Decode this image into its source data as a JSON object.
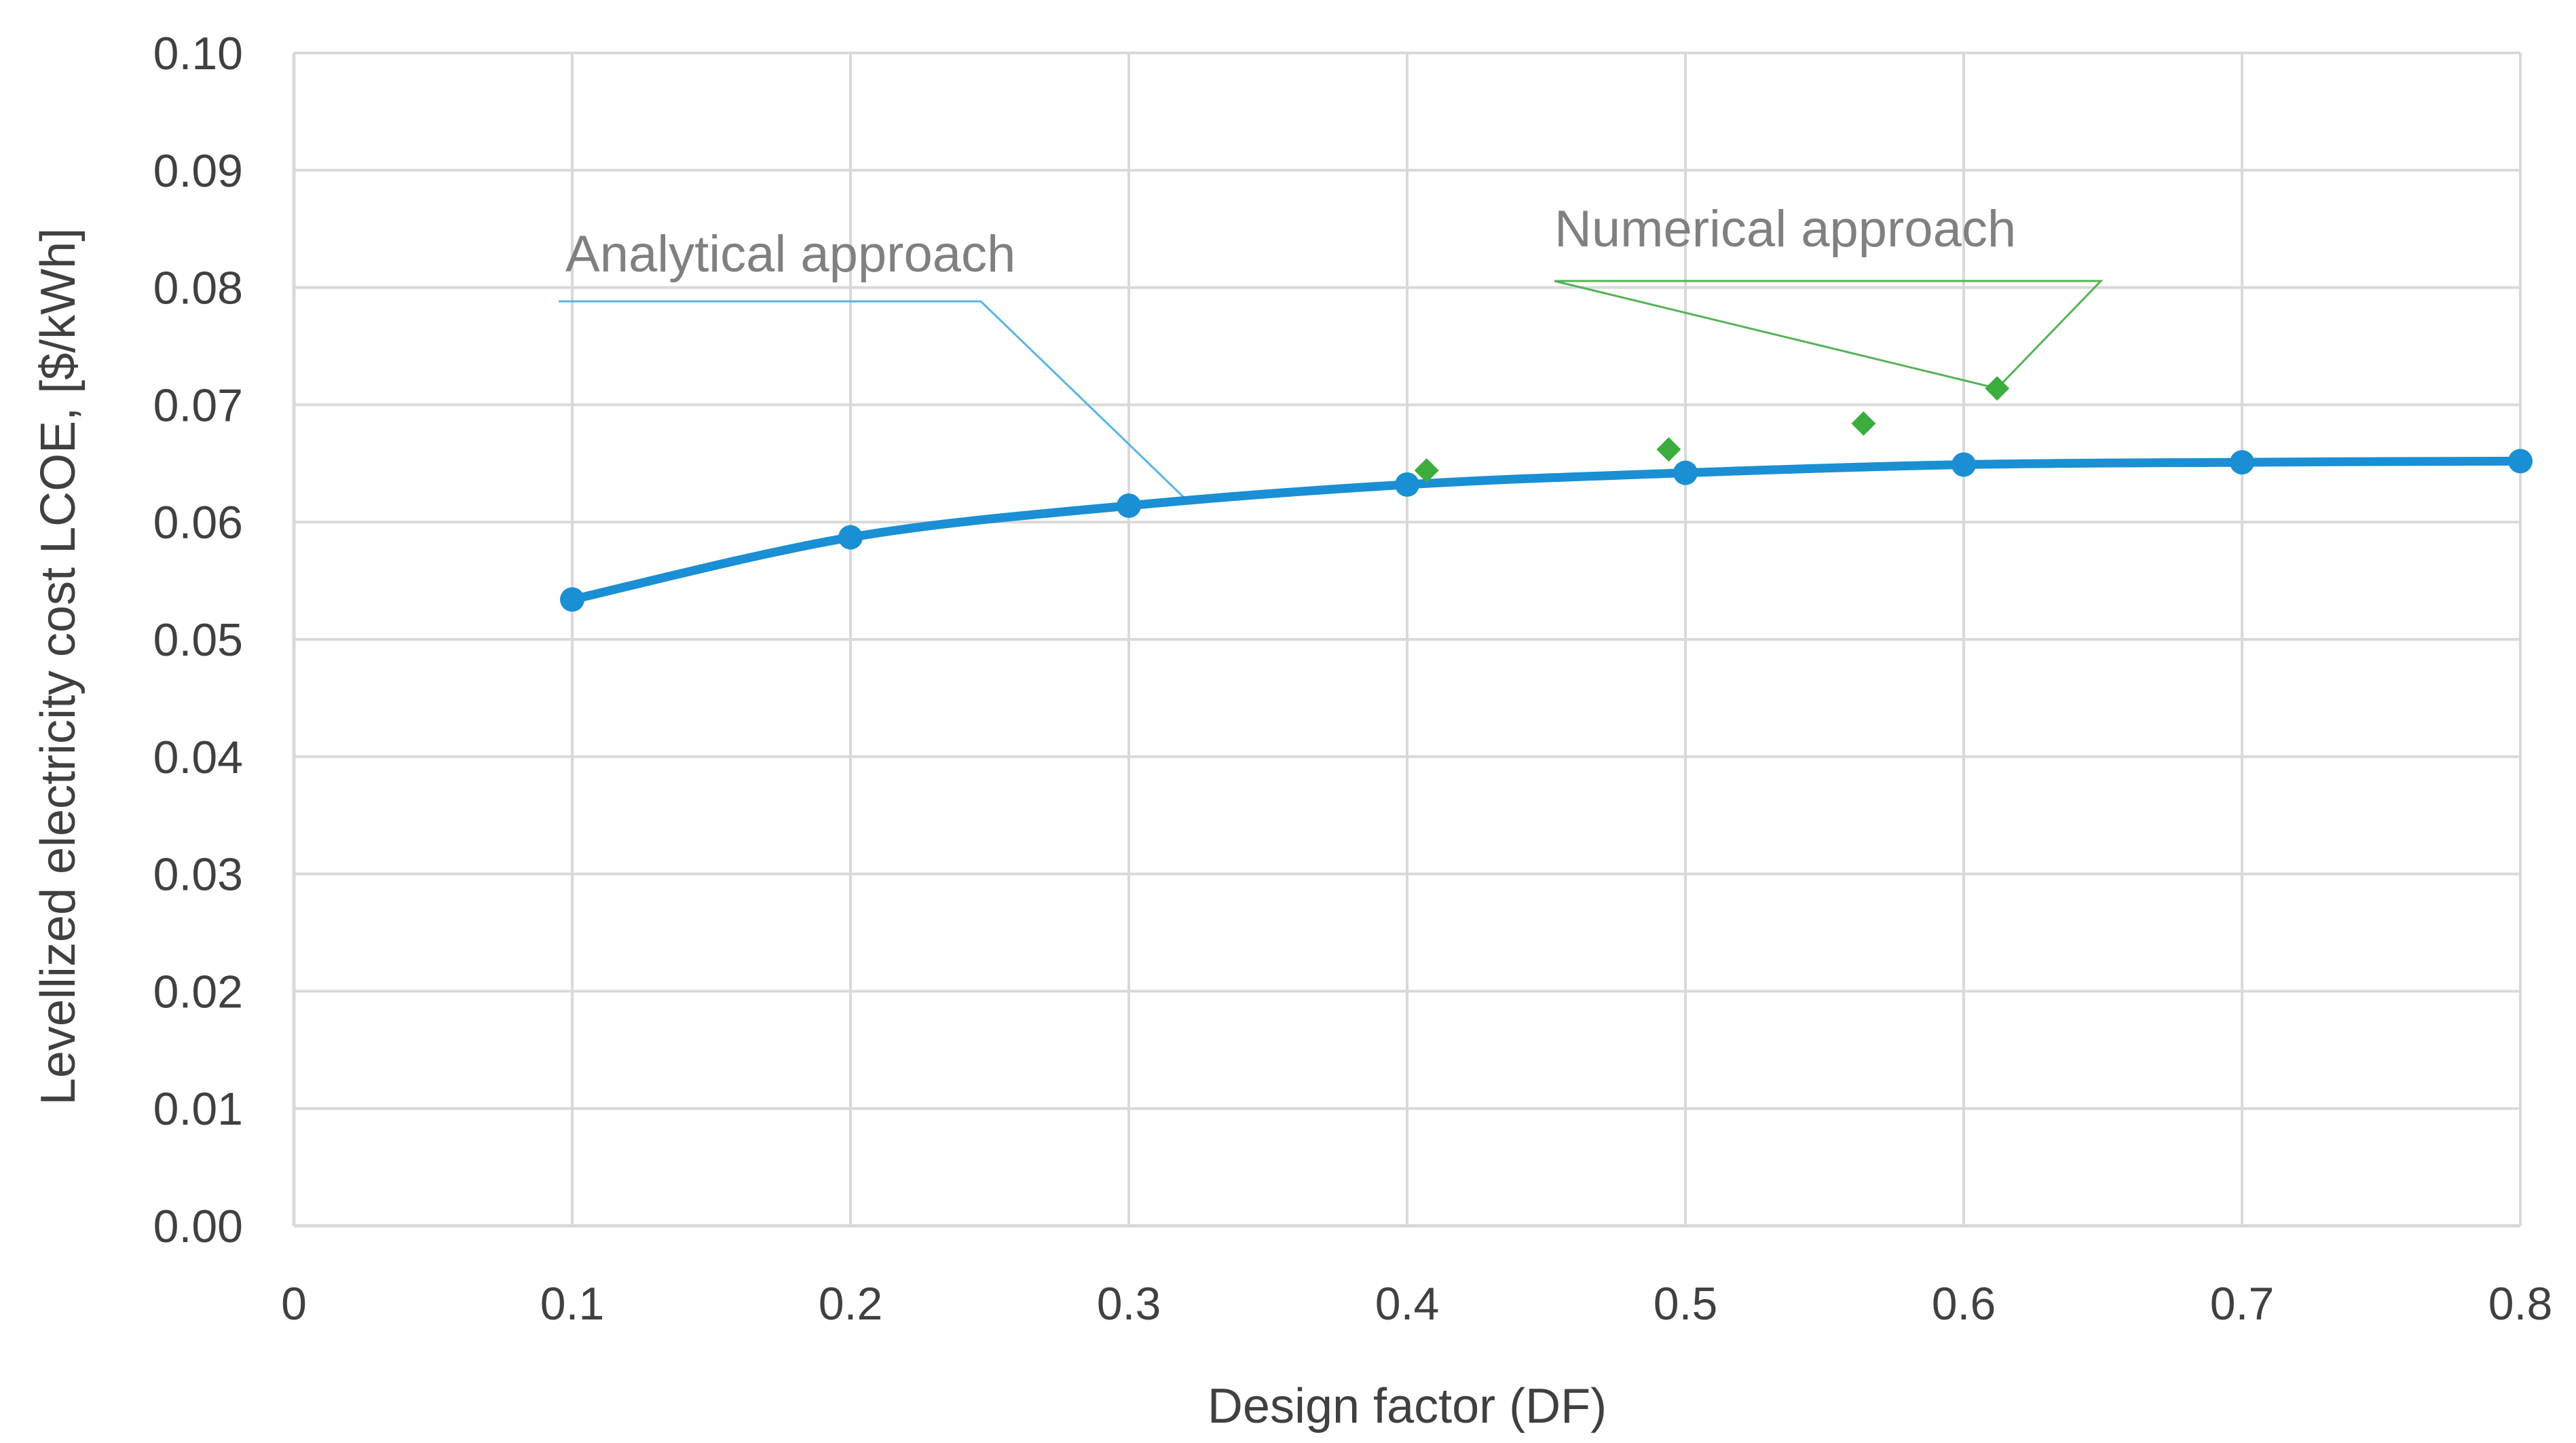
{
  "chart_data": {
    "type": "scatter",
    "title": "",
    "xlabel": "Design factor (DF)",
    "ylabel": "Levellized electricity cost LCOE, [$/kWh]",
    "xlim": [
      0,
      0.8
    ],
    "ylim": [
      0,
      0.1
    ],
    "x_ticks": [
      "0",
      "0.1",
      "0.2",
      "0.3",
      "0.4",
      "0.5",
      "0.6",
      "0.7",
      "0.8"
    ],
    "y_ticks": [
      "0.00",
      "0.01",
      "0.02",
      "0.03",
      "0.04",
      "0.05",
      "0.06",
      "0.07",
      "0.08",
      "0.09",
      "0.10"
    ],
    "grid": true,
    "legend": "none",
    "series": [
      {
        "name": "Analytical approach",
        "style": "smooth-line-with-circle-markers",
        "color": "#1a8fd4",
        "x": [
          0.1,
          0.2,
          0.3,
          0.4,
          0.5,
          0.6,
          0.7,
          0.8
        ],
        "y": [
          0.0534,
          0.0587,
          0.0614,
          0.0632,
          0.0642,
          0.0649,
          0.0651,
          0.0652
        ]
      },
      {
        "name": "Numerical approach",
        "style": "diamond-markers",
        "color": "#3cac3c",
        "x": [
          0.407,
          0.494,
          0.564,
          0.612
        ],
        "y": [
          0.0644,
          0.0662,
          0.0684,
          0.0714
        ]
      }
    ],
    "annotations": [
      {
        "text": "Analytical approach",
        "color": "#5bb4e5",
        "points_to": [
          0.322,
          0.0616
        ]
      },
      {
        "text": "Numerical approach",
        "color": "#55b255",
        "points_to": [
          0.612,
          0.0714
        ]
      }
    ]
  }
}
